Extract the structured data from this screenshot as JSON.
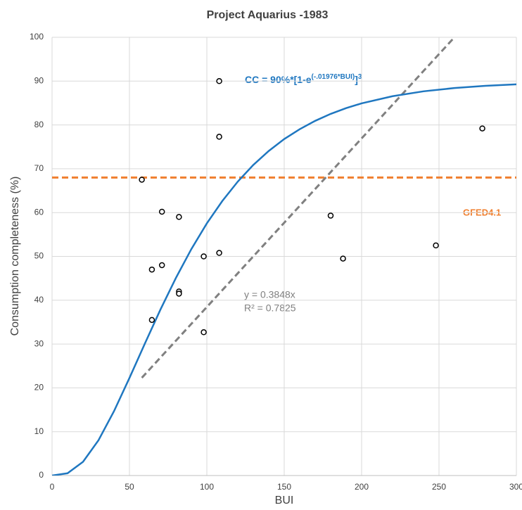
{
  "chart_data": {
    "type": "scatter",
    "title": "Project Aquarius -1983",
    "x_label": "BUI",
    "y_label": "Consumption completeness (%)",
    "xlim": [
      0,
      300
    ],
    "ylim": [
      0,
      100
    ],
    "xticks": [
      0,
      50,
      100,
      150,
      200,
      250,
      300
    ],
    "yticks": [
      0,
      10,
      20,
      30,
      40,
      50,
      60,
      70,
      80,
      90,
      100
    ],
    "grid": true,
    "points": {
      "color": "#000000",
      "x": [
        58,
        64.5,
        64.5,
        71,
        71,
        82,
        82,
        82,
        98,
        98,
        108,
        108,
        108,
        180,
        188,
        248,
        278
      ],
      "values": [
        67.5,
        47,
        35.5,
        60.2,
        48,
        59,
        42,
        41.5,
        50,
        32.7,
        90,
        77.3,
        50.8,
        59.3,
        49.5,
        52.5,
        79.2
      ]
    },
    "curve": {
      "color": "#1f77c0",
      "x": [
        0,
        10,
        20,
        30,
        40,
        50,
        60,
        70,
        80,
        90,
        100,
        110,
        120,
        130,
        140,
        150,
        160,
        170,
        180,
        190,
        200,
        220,
        240,
        260,
        280,
        300
      ],
      "values": [
        0,
        0.52,
        3.13,
        8.05,
        14.67,
        22.26,
        30.13,
        37.85,
        45.08,
        51.67,
        57.53,
        62.64,
        67.07,
        70.86,
        74.06,
        76.78,
        79.03,
        80.93,
        82.52,
        83.83,
        84.92,
        86.56,
        87.67,
        88.42,
        88.92,
        89.27
      ],
      "equation": [
        "CC =  90%*[1-e",
        "(-.01976*BUI)",
        "]",
        "3"
      ]
    },
    "trendline": {
      "color": "#808080",
      "x": [
        58,
        260
      ],
      "values": [
        22.3,
        100
      ],
      "equation": "y = 0.3848x",
      "r2": "R² = 0.7825"
    },
    "reference": {
      "value": 68,
      "label": "GFED4.1",
      "color": "#f07f2e"
    }
  }
}
